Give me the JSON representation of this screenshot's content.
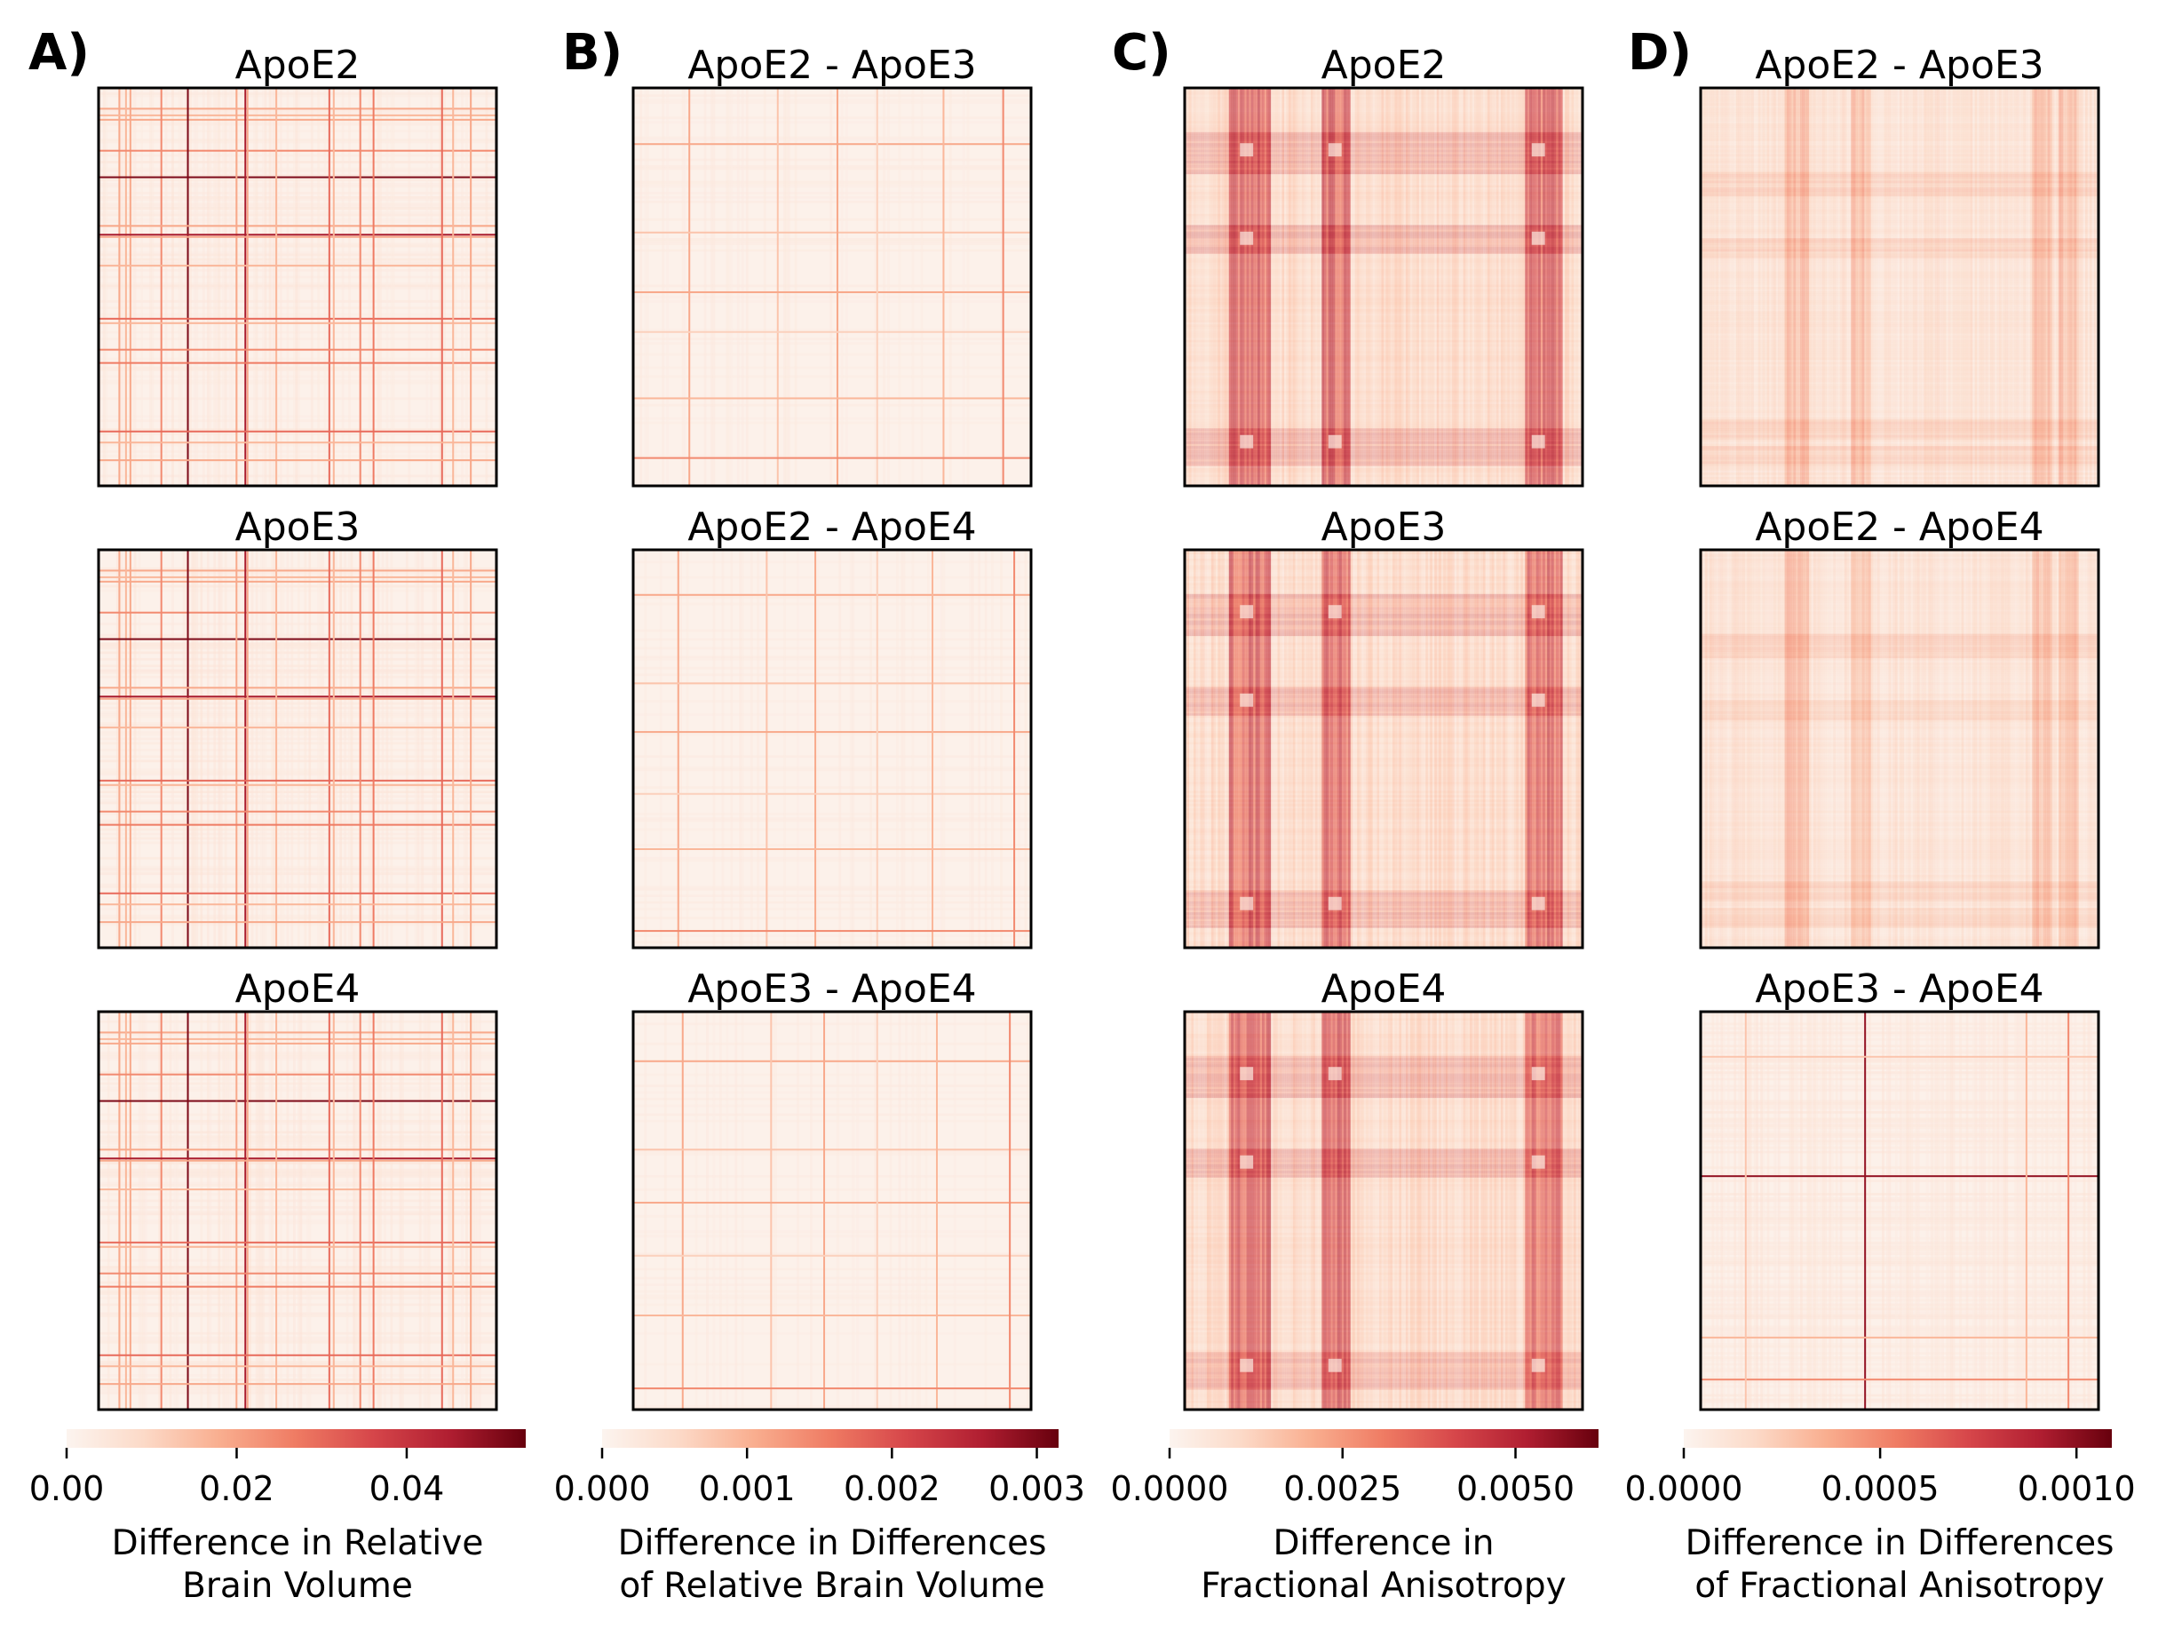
{
  "colors": {
    "cmap": [
      "#fcf4ef",
      "#fcdac8",
      "#f9ae8f",
      "#ef7b63",
      "#d6464a",
      "#b01e31",
      "#67000d"
    ]
  },
  "chart_data": [
    {
      "type": "heatmap",
      "panel_label": "A)",
      "colorbar": {
        "label": [
          "Difference in Relative",
          "Brain Volume"
        ],
        "min": 0,
        "max": 0.054,
        "ticks": [
          0.0,
          0.02,
          0.04
        ],
        "tick_labels": [
          "0.00",
          "0.02",
          "0.04"
        ]
      },
      "subplots": [
        {
          "title": "ApoE2",
          "pattern": "rbvA",
          "seed": 11
        },
        {
          "title": "ApoE3",
          "pattern": "rbvA",
          "seed": 12
        },
        {
          "title": "ApoE4",
          "pattern": "rbvA",
          "seed": 13
        }
      ]
    },
    {
      "type": "heatmap",
      "panel_label": "B)",
      "colorbar": {
        "label": [
          "Difference in Differences",
          "of Relative Brain Volume"
        ],
        "min": 0,
        "max": 0.00315,
        "ticks": [
          0.0,
          0.001,
          0.002,
          0.003
        ],
        "tick_labels": [
          "0.000",
          "0.001",
          "0.002",
          "0.003"
        ]
      },
      "subplots": [
        {
          "title": "ApoE2 - ApoE3",
          "pattern": "sparse",
          "seed": 21
        },
        {
          "title": "ApoE2 - ApoE4",
          "pattern": "sparse",
          "seed": 22
        },
        {
          "title": "ApoE3 - ApoE4",
          "pattern": "sparse",
          "seed": 23
        }
      ]
    },
    {
      "type": "heatmap",
      "panel_label": "C)",
      "colorbar": {
        "label": [
          "Difference in",
          "Fractional Anisotropy"
        ],
        "min": 0,
        "max": 0.0062,
        "ticks": [
          0.0,
          0.0025,
          0.005
        ],
        "tick_labels": [
          "0.0000",
          "0.0025",
          "0.0050"
        ]
      },
      "subplots": [
        {
          "title": "ApoE2",
          "pattern": "faBands",
          "seed": 31
        },
        {
          "title": "ApoE3",
          "pattern": "faBands",
          "seed": 32
        },
        {
          "title": "ApoE4",
          "pattern": "faBands",
          "seed": 33
        }
      ]
    },
    {
      "type": "heatmap",
      "panel_label": "D)",
      "colorbar": {
        "label": [
          "Difference in Differences",
          "of Fractional Anisotropy"
        ],
        "min": 0,
        "max": 0.00109,
        "ticks": [
          0.0,
          0.0005,
          0.001
        ],
        "tick_labels": [
          "0.0000",
          "0.0005",
          "0.0010"
        ]
      },
      "subplots": [
        {
          "title": "ApoE2 - ApoE3",
          "pattern": "faDiff",
          "seed": 41
        },
        {
          "title": "ApoE2 - ApoE4",
          "pattern": "faDiff",
          "seed": 42
        },
        {
          "title": "ApoE3 - ApoE4",
          "pattern": "faDiffSparse",
          "seed": 43
        }
      ]
    }
  ]
}
